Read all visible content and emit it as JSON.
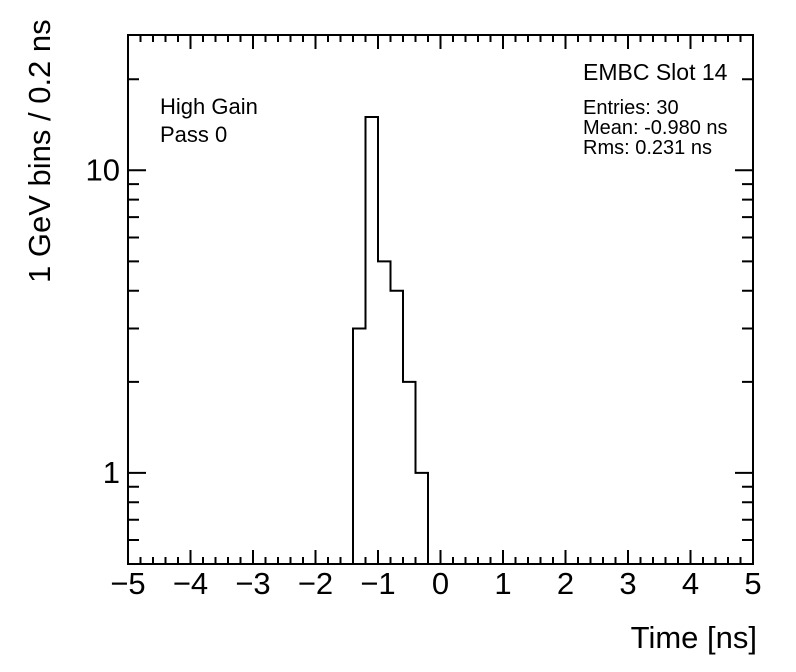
{
  "page": {
    "background_color": "#ffffff",
    "foreground_color": "#000000"
  },
  "chart_data": {
    "type": "bar",
    "subtype": "step-histogram",
    "title": "",
    "xlabel": "Time [ns]",
    "ylabel": "1 GeV bins / 0.2 ns",
    "y_scale": "log",
    "xlim": [
      -5,
      5
    ],
    "ylim": [
      0.5,
      28
    ],
    "grid": false,
    "legend": false,
    "bin_width_ns": 0.2,
    "bin_edges": [
      -1.4,
      -1.2,
      -1.0,
      -0.8,
      -0.6,
      -0.4,
      -0.2
    ],
    "counts": [
      3,
      15,
      5,
      4,
      2,
      1
    ],
    "x_tick_values": [
      -5,
      -4,
      -3,
      -2,
      -1,
      0,
      1,
      2,
      3,
      4,
      5
    ],
    "x_tick_labels": [
      "−5",
      "−4",
      "−3",
      "−2",
      "−1",
      "0",
      "1",
      "2",
      "3",
      "4",
      "5"
    ],
    "x_minor_step": 0.2,
    "y_major_ticks": [
      1,
      10
    ],
    "y_major_labels": [
      "1",
      "10"
    ],
    "y_minor_ticks": [
      0.6,
      0.7,
      0.8,
      0.9,
      2,
      3,
      4,
      5,
      6,
      7,
      8,
      9,
      20
    ],
    "line_color": "#000000",
    "frame_color": "#000000",
    "annotations": {
      "corner_label": "EMBC Slot 14",
      "entries": "Entries: 30",
      "mean": "Mean: -0.980 ns",
      "rms": "Rms: 0.231 ns",
      "gain": "High Gain",
      "pass": "Pass 0"
    }
  }
}
